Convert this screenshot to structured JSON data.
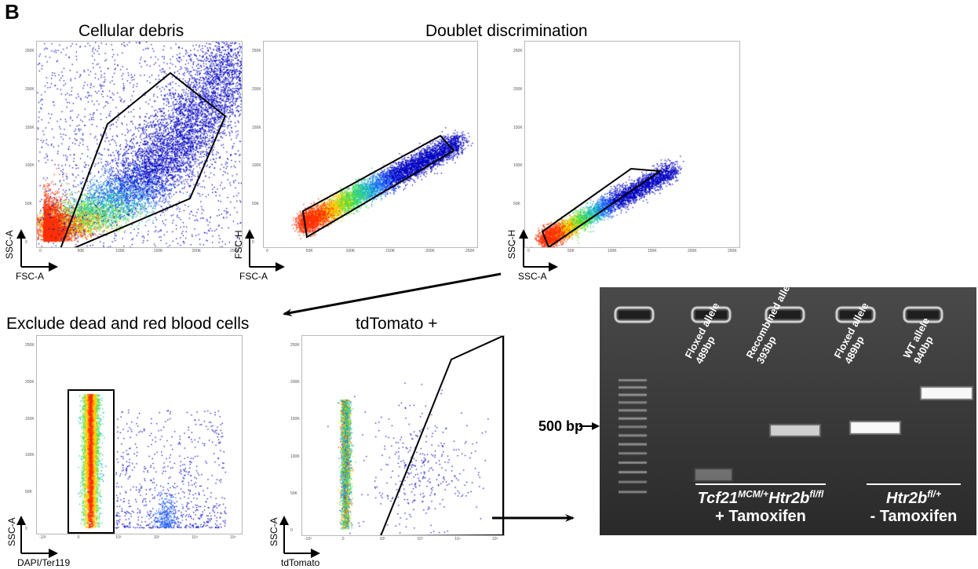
{
  "panel_letter": "B",
  "titles": {
    "cellular_debris": "Cellular debris",
    "doublet": "Doublet discrimination",
    "exclude": "Exclude dead and red blood cells",
    "tdtomato": "tdTomato +"
  },
  "plots": [
    {
      "id": "p1",
      "xlabel": "FSC-A",
      "ylabel": "SSC-A",
      "yticks": [
        "250K",
        "200K",
        "150K",
        "100K",
        "50K",
        "0"
      ],
      "xticks": [
        "0",
        "50K",
        "100K",
        "150K",
        "200K",
        "250K"
      ]
    },
    {
      "id": "p2",
      "xlabel": "FSC-A",
      "ylabel": "FSC-H",
      "yticks": [
        "250K",
        "200K",
        "150K",
        "100K",
        "50K",
        "0"
      ],
      "xticks": [
        "0",
        "50K",
        "100K",
        "150K",
        "200K",
        "250K"
      ]
    },
    {
      "id": "p3",
      "xlabel": "SSC-A",
      "ylabel": "SSC-H",
      "yticks": [
        "250K",
        "200K",
        "150K",
        "100K",
        "50K",
        "0"
      ],
      "xticks": [
        "0",
        "50K",
        "100K",
        "150K",
        "200K",
        "250K"
      ]
    },
    {
      "id": "p4",
      "xlabel": "DAPI/Ter119",
      "ylabel": "SSC-A",
      "yticks": [
        "250K",
        "200K",
        "150K",
        "100K",
        "50K",
        "0"
      ],
      "xticks": [
        "-10²",
        "0",
        "10²",
        "10³",
        "10⁴",
        "10⁵"
      ]
    },
    {
      "id": "p5",
      "xlabel": "tdTomato",
      "ylabel": "SSC-A",
      "yticks": [
        "250K",
        "200K",
        "150K",
        "100K",
        "50K",
        "0"
      ],
      "xticks": [
        "-10²",
        "0",
        "10²",
        "10³",
        "10⁴",
        "10⁵"
      ]
    }
  ],
  "gel": {
    "marker_label": "500 bp",
    "lanes": [
      {
        "line1": "Floxed allele",
        "line2": "489bp"
      },
      {
        "line1": "Recombined allele",
        "line2": "393bp"
      },
      {
        "line1": "Floxed allele",
        "line2": "489bp"
      },
      {
        "line1": "WT allele",
        "line2": "940bp"
      }
    ],
    "group1": {
      "gene1": "Tcf21",
      "sup1": "MCM/+",
      "gene2": "Htr2b",
      "sup2": "fl/fl",
      "line2": "+ Tamoxifen"
    },
    "group2": {
      "gene": "Htr2b",
      "sup": "fl/+",
      "line2": "- Tamoxifen"
    }
  },
  "colors": {
    "gel_bg": "#3b3b3b",
    "gate": "#000000",
    "dots_low": "#0000cc",
    "dots_high": "#ff0000"
  }
}
